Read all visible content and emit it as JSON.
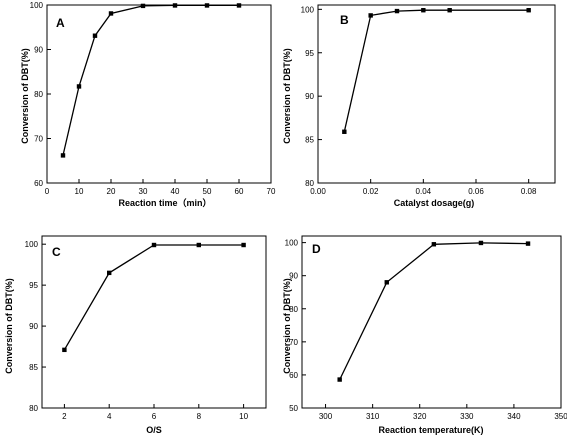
{
  "chart_data": [
    {
      "type": "line",
      "panel_label": "A",
      "xlabel": "Reaction time（min）",
      "ylabel": "Conversion of DBT(%)",
      "xlim": [
        0,
        70
      ],
      "ylim": [
        60,
        100
      ],
      "xticks": [
        0,
        10,
        20,
        30,
        40,
        50,
        60,
        70
      ],
      "yticks": [
        60,
        70,
        80,
        90,
        100
      ],
      "x": [
        5,
        10,
        15,
        20,
        30,
        40,
        50,
        60
      ],
      "y": [
        66.2,
        81.7,
        93.1,
        98.1,
        99.8,
        99.9,
        99.9,
        99.9
      ],
      "grid": false,
      "marker": "square",
      "color": "#000000"
    },
    {
      "type": "line",
      "panel_label": "B",
      "xlabel": "Catalyst dosage(g)",
      "ylabel": "Conversion of DBT(%)",
      "xlim": [
        0,
        0.09
      ],
      "ylim": [
        80,
        100.5
      ],
      "xticks": [
        "0.00",
        "0.02",
        "0.04",
        "0.06",
        "0.08"
      ],
      "yticks": [
        80,
        85,
        90,
        95,
        100
      ],
      "x": [
        0.01,
        0.02,
        0.03,
        0.04,
        0.05,
        0.08
      ],
      "y": [
        85.9,
        99.3,
        99.8,
        99.9,
        99.9,
        99.9
      ],
      "grid": false,
      "marker": "square",
      "color": "#000000"
    },
    {
      "type": "line",
      "panel_label": "C",
      "xlabel": "O/S",
      "ylabel": "Conversion of DBT(%)",
      "xlim": [
        1,
        11
      ],
      "ylim": [
        80,
        101
      ],
      "xticks": [
        2,
        4,
        6,
        8,
        10
      ],
      "yticks": [
        80,
        85,
        90,
        95,
        100
      ],
      "x": [
        2,
        4,
        6,
        8,
        10
      ],
      "y": [
        87.1,
        96.5,
        99.9,
        99.9,
        99.9
      ],
      "grid": false,
      "marker": "square",
      "color": "#000000"
    },
    {
      "type": "line",
      "panel_label": "D",
      "xlabel": "Reaction temperature(K)",
      "ylabel": "Conversion of DBT(%)",
      "xlim": [
        295,
        350
      ],
      "ylim": [
        50,
        102
      ],
      "xticks": [
        300,
        310,
        320,
        330,
        340,
        350
      ],
      "yticks": [
        50,
        60,
        70,
        80,
        90,
        100
      ],
      "x": [
        303,
        313,
        323,
        333,
        343
      ],
      "y": [
        58.6,
        88.0,
        99.5,
        99.9,
        99.7
      ],
      "grid": false,
      "marker": "square",
      "color": "#000000"
    }
  ]
}
